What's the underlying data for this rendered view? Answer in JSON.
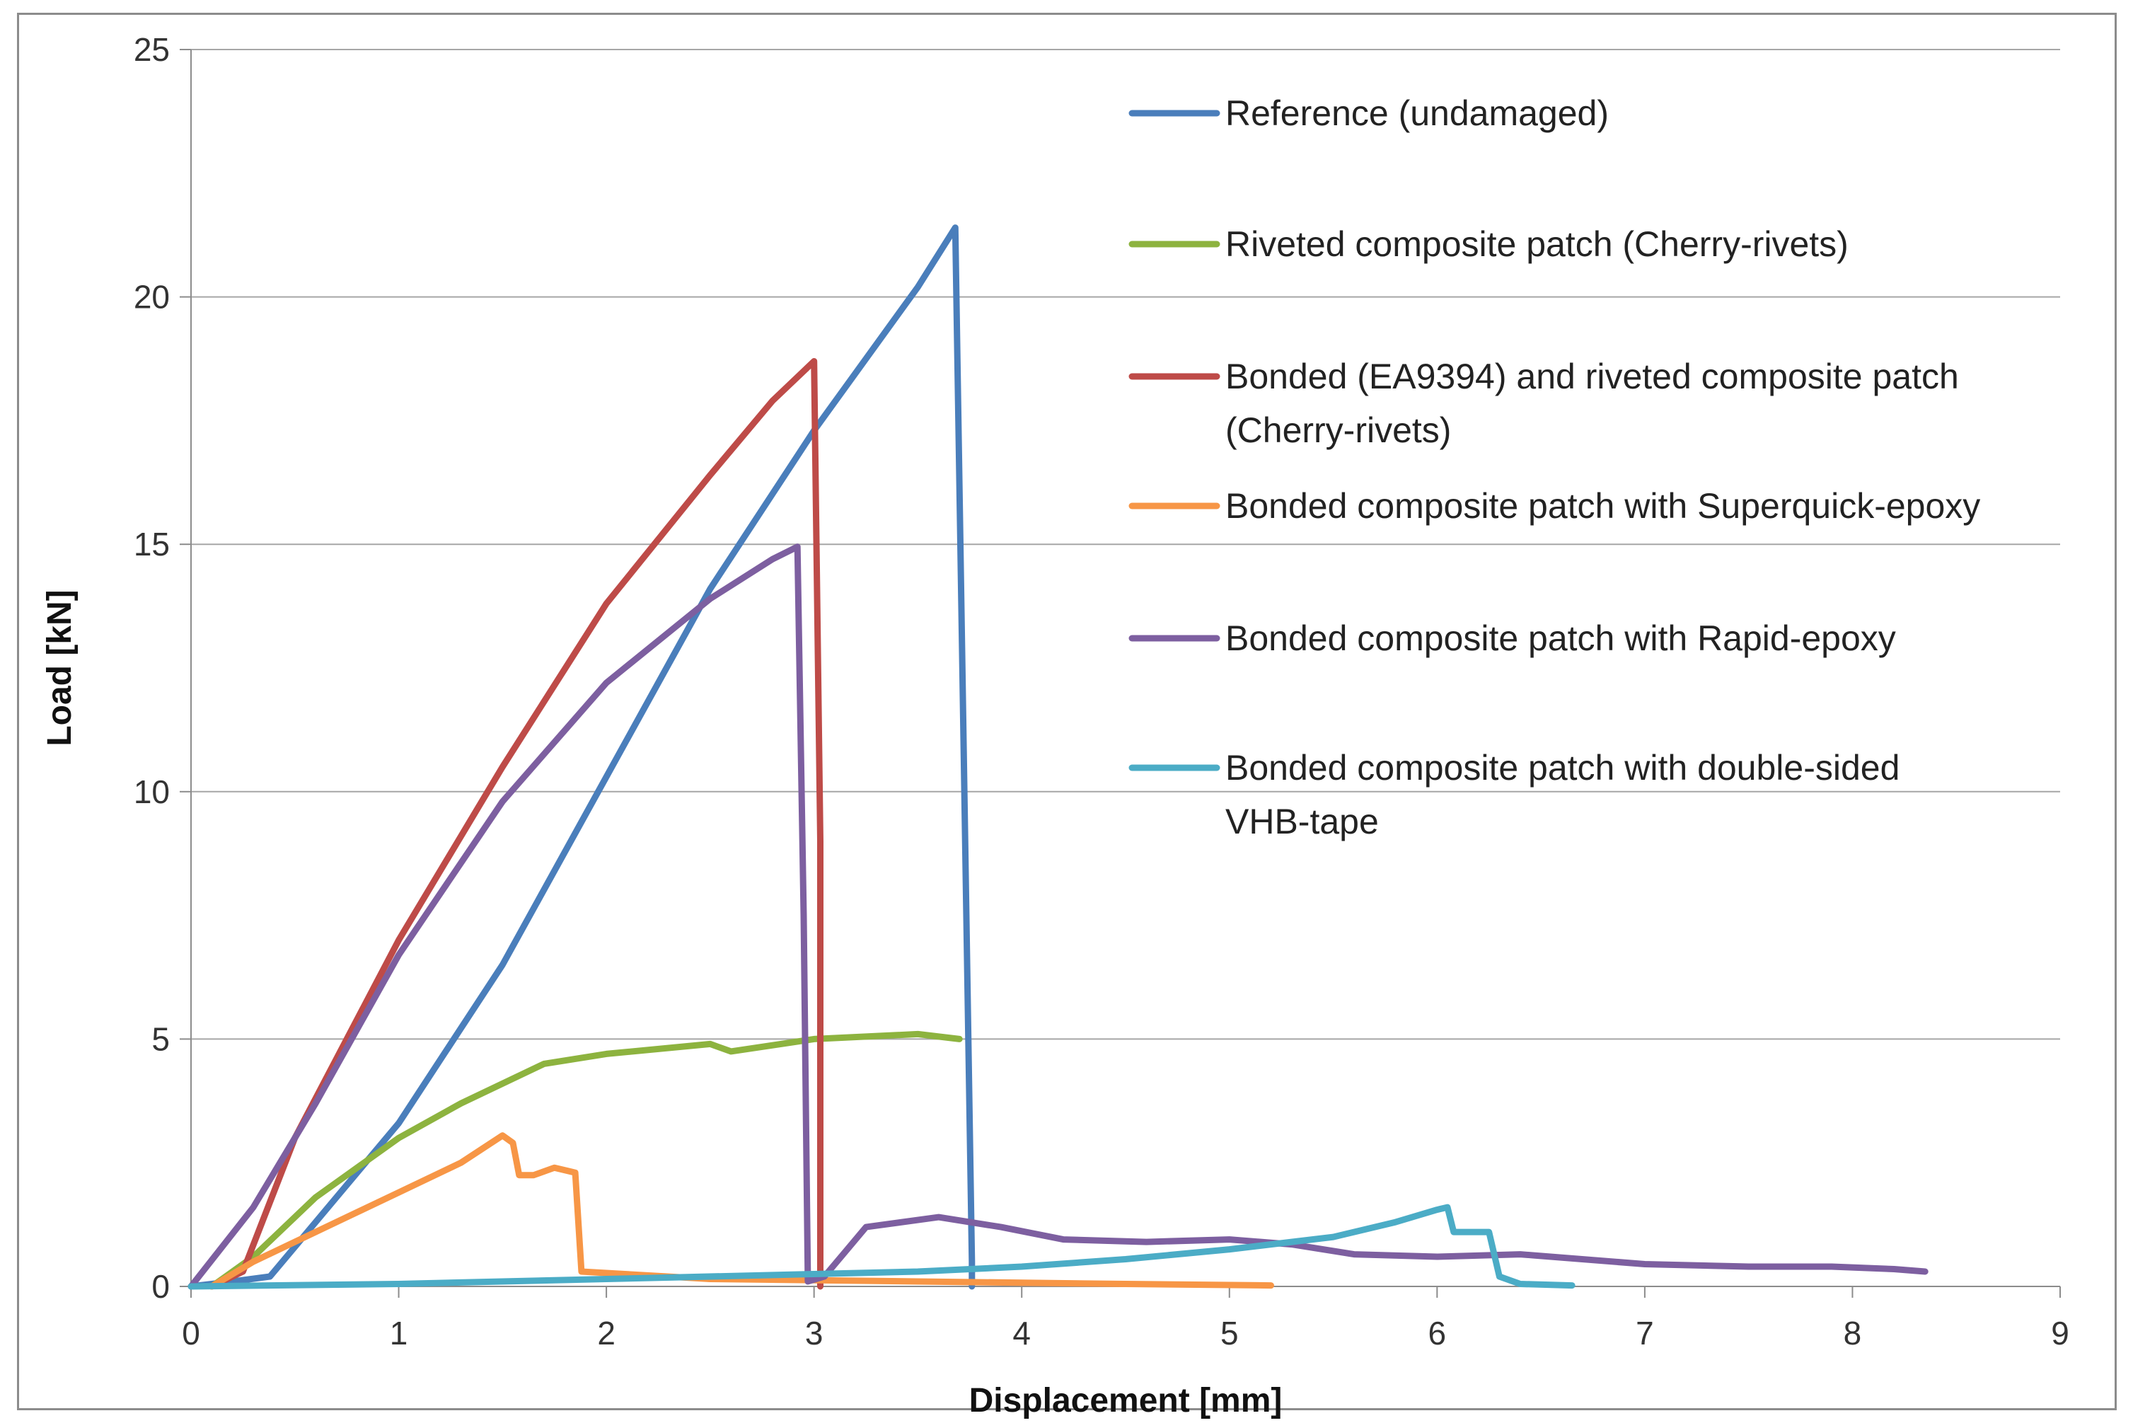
{
  "chart_data": {
    "type": "line",
    "title": "",
    "xlabel": "Displacement [mm]",
    "ylabel": "Load [kN]",
    "xlim": [
      0,
      9
    ],
    "ylim": [
      0,
      25
    ],
    "x_ticks": [
      "0",
      "1",
      "2",
      "3",
      "4",
      "5",
      "6",
      "7",
      "8",
      "9"
    ],
    "y_ticks": [
      "0",
      "5",
      "10",
      "15",
      "20",
      "25"
    ],
    "grid": "horizontal",
    "legend_position": "top-right",
    "series": [
      {
        "name": "Reference (undamaged)",
        "color": "#4A7EBB",
        "points": [
          [
            0,
            0
          ],
          [
            0.2,
            0.1
          ],
          [
            0.38,
            0.2
          ],
          [
            0.5,
            0.8
          ],
          [
            0.7,
            1.8
          ],
          [
            1.0,
            3.3
          ],
          [
            1.5,
            6.5
          ],
          [
            2.0,
            10.3
          ],
          [
            2.5,
            14.1
          ],
          [
            3.0,
            17.3
          ],
          [
            3.5,
            20.2
          ],
          [
            3.68,
            21.4
          ],
          [
            3.72,
            11.0
          ],
          [
            3.76,
            0.5
          ],
          [
            3.76,
            0
          ]
        ]
      },
      {
        "name": "Riveted composite patch (Cherry-rivets)",
        "color": "#8DB33F",
        "points": [
          [
            0.1,
            0
          ],
          [
            0.3,
            0.6
          ],
          [
            0.6,
            1.8
          ],
          [
            1.0,
            3.0
          ],
          [
            1.3,
            3.7
          ],
          [
            1.7,
            4.5
          ],
          [
            2.0,
            4.7
          ],
          [
            2.5,
            4.9
          ],
          [
            2.6,
            4.75
          ],
          [
            3.0,
            5.0
          ],
          [
            3.5,
            5.1
          ],
          [
            3.7,
            5.0
          ]
        ]
      },
      {
        "name": "Bonded (EA9394) and riveted composite patch (Cherry-rivets)",
        "color": "#BE4B48",
        "points": [
          [
            0.1,
            0
          ],
          [
            0.25,
            0.3
          ],
          [
            0.5,
            3.0
          ],
          [
            1.0,
            7.0
          ],
          [
            1.5,
            10.5
          ],
          [
            2.0,
            13.8
          ],
          [
            2.5,
            16.4
          ],
          [
            2.8,
            17.9
          ],
          [
            2.95,
            18.5
          ],
          [
            3.0,
            18.7
          ],
          [
            3.03,
            9.0
          ],
          [
            3.03,
            0
          ]
        ]
      },
      {
        "name": "Bonded composite patch with Superquick-epoxy",
        "color": "#F79646",
        "points": [
          [
            0.1,
            0
          ],
          [
            0.3,
            0.5
          ],
          [
            0.7,
            1.3
          ],
          [
            1.0,
            1.9
          ],
          [
            1.3,
            2.5
          ],
          [
            1.5,
            3.05
          ],
          [
            1.55,
            2.9
          ],
          [
            1.58,
            2.25
          ],
          [
            1.65,
            2.25
          ],
          [
            1.75,
            2.4
          ],
          [
            1.85,
            2.3
          ],
          [
            1.88,
            0.3
          ],
          [
            2.5,
            0.15
          ],
          [
            3.5,
            0.1
          ],
          [
            4.5,
            0.05
          ],
          [
            5.2,
            0.02
          ]
        ]
      },
      {
        "name": "Bonded composite patch with Rapid-epoxy",
        "color": "#7D5FA0",
        "points": [
          [
            0,
            0
          ],
          [
            0.3,
            1.6
          ],
          [
            0.6,
            3.7
          ],
          [
            1.0,
            6.7
          ],
          [
            1.5,
            9.8
          ],
          [
            2.0,
            12.2
          ],
          [
            2.5,
            13.9
          ],
          [
            2.8,
            14.7
          ],
          [
            2.92,
            14.95
          ],
          [
            2.95,
            7.5
          ],
          [
            2.97,
            0.1
          ],
          [
            3.05,
            0.2
          ],
          [
            3.15,
            0.7
          ],
          [
            3.25,
            1.2
          ],
          [
            3.6,
            1.4
          ],
          [
            3.9,
            1.2
          ],
          [
            4.2,
            0.95
          ],
          [
            4.6,
            0.9
          ],
          [
            5.0,
            0.95
          ],
          [
            5.3,
            0.85
          ],
          [
            5.6,
            0.65
          ],
          [
            6.0,
            0.6
          ],
          [
            6.4,
            0.65
          ],
          [
            7.0,
            0.45
          ],
          [
            7.5,
            0.4
          ],
          [
            7.9,
            0.4
          ],
          [
            8.2,
            0.35
          ],
          [
            8.35,
            0.3
          ]
        ]
      },
      {
        "name": "Bonded composite patch with double-sided VHB-tape",
        "color": "#4BACC6",
        "points": [
          [
            0,
            0
          ],
          [
            1.0,
            0.05
          ],
          [
            2.0,
            0.15
          ],
          [
            3.0,
            0.25
          ],
          [
            3.5,
            0.3
          ],
          [
            4.0,
            0.4
          ],
          [
            4.5,
            0.55
          ],
          [
            5.0,
            0.75
          ],
          [
            5.5,
            1.0
          ],
          [
            5.8,
            1.3
          ],
          [
            6.0,
            1.55
          ],
          [
            6.05,
            1.6
          ],
          [
            6.08,
            1.1
          ],
          [
            6.25,
            1.1
          ],
          [
            6.3,
            0.2
          ],
          [
            6.4,
            0.05
          ],
          [
            6.65,
            0.02
          ]
        ]
      }
    ],
    "legend_entries": [
      [
        "Reference (undamaged)"
      ],
      [
        "Riveted composite patch (Cherry-rivets)"
      ],
      [
        "Bonded (EA9394) and riveted composite patch",
        "(Cherry-rivets)"
      ],
      [
        "Bonded composite patch with Superquick-epoxy"
      ],
      [
        "Bonded composite patch with Rapid-epoxy"
      ],
      [
        "Bonded composite patch with double-sided",
        "VHB-tape"
      ]
    ]
  }
}
